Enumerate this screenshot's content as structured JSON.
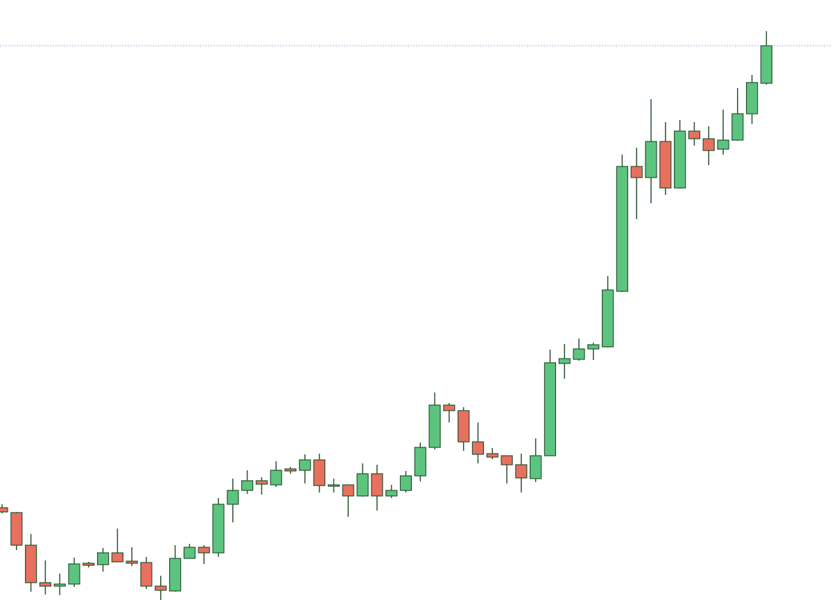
{
  "chart_data": {
    "type": "candlestick",
    "ylim": [
      0,
      865
    ],
    "up_color": "#5cc47e",
    "down_color": "#e8705f",
    "wick_color": "#24502e",
    "price_line": 799,
    "price_line_color": "#8fb0e8",
    "open": [
      133,
      126,
      79,
      25,
      20,
      23,
      53,
      51,
      68,
      56,
      54,
      20,
      13,
      60,
      76,
      68,
      138,
      158,
      172,
      166,
      189,
      187,
      202,
      164,
      166,
      150,
      182,
      150,
      158,
      179,
      220,
      281,
      273,
      228,
      211,
      208,
      195,
      175,
      208,
      341,
      347,
      362,
      365,
      445,
      625,
      609,
      661,
      594,
      676,
      665,
      650,
      663,
      701,
      745
    ],
    "high": [
      138,
      127,
      95,
      57,
      38,
      61,
      55,
      75,
      103,
      76,
      62,
      35,
      79,
      81,
      79,
      147,
      175,
      187,
      177,
      200,
      192,
      210,
      211,
      175,
      166,
      197,
      195,
      166,
      186,
      227,
      299,
      284,
      278,
      256,
      219,
      208,
      211,
      233,
      361,
      369,
      377,
      371,
      467,
      642,
      652,
      722,
      689,
      692,
      689,
      683,
      707,
      738,
      757,
      820
    ],
    "low": [
      125,
      72,
      12,
      8,
      7,
      19,
      47,
      41,
      55,
      49,
      16,
      0,
      12,
      60,
      52,
      62,
      112,
      153,
      152,
      163,
      182,
      168,
      155,
      155,
      120,
      149,
      129,
      147,
      155,
      171,
      217,
      256,
      215,
      197,
      203,
      168,
      155,
      170,
      208,
      319,
      345,
      346,
      364,
      444,
      549,
      572,
      584,
      593,
      655,
      627,
      642,
      662,
      686,
      743
    ],
    "close": [
      127,
      79,
      25,
      20,
      23,
      52,
      50,
      68,
      55,
      53,
      20,
      14,
      60,
      76,
      68,
      138,
      158,
      172,
      167,
      187,
      186,
      202,
      165,
      166,
      150,
      182,
      150,
      158,
      179,
      220,
      281,
      273,
      228,
      210,
      206,
      195,
      176,
      208,
      342,
      348,
      362,
      368,
      447,
      625,
      609,
      661,
      594,
      676,
      665,
      648,
      663,
      701,
      746,
      799
    ]
  }
}
